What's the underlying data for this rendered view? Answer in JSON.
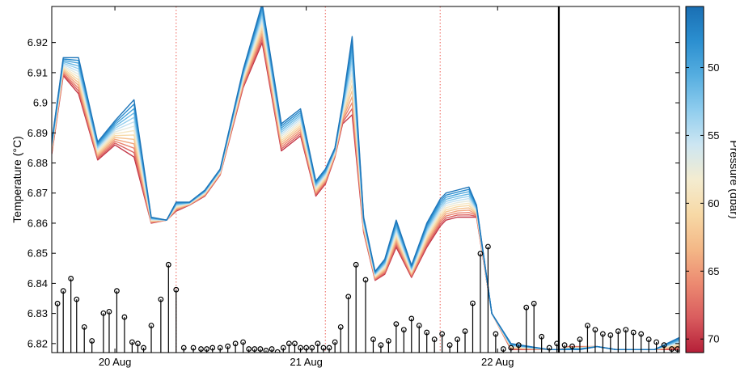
{
  "chart_data": {
    "type": "line",
    "title": "",
    "xlabel": "",
    "ylabel": "Temperature (°C)",
    "ylim": [
      6.817,
      6.932
    ],
    "xlim": [
      0.0,
      3.28
    ],
    "yticks": [
      6.82,
      6.83,
      6.84,
      6.85,
      6.86,
      6.87,
      6.88,
      6.89,
      6.9,
      6.91,
      6.92
    ],
    "ytick_labels": [
      "6.82",
      "6.83",
      "6.84",
      "6.85",
      "6.86",
      "6.87",
      "6.88",
      "6.89",
      "6.9",
      "6.91",
      "6.92"
    ],
    "xticks": [
      0.33,
      1.33,
      2.33
    ],
    "xtick_labels": [
      "20 Aug",
      "21 Aug",
      "22 Aug"
    ],
    "x_unit": "days after 19 Aug 16:00",
    "grid": false,
    "colorbar": {
      "label": "Pressure (dbar)",
      "range": [
        45.5,
        71.0
      ],
      "ticks": [
        50,
        55,
        60,
        65,
        70
      ],
      "tick_labels": [
        "50",
        "55",
        "60",
        "65",
        "70"
      ],
      "colors_top_to_bottom": [
        "#1a6fb3",
        "#2b8fd0",
        "#56aee0",
        "#90cdee",
        "#cde6f2",
        "#f4ecd0",
        "#f7d9a6",
        "#f4b887",
        "#ec8a71",
        "#d95c5e",
        "#b51f38"
      ]
    },
    "reference_lines": {
      "dotted_red_x": [
        0.65,
        1.43,
        2.03
      ],
      "solid_black_x": 2.65
    },
    "series_shallow": {
      "name": "",
      "pressure_dbar": 46,
      "x": [
        0.0,
        0.06,
        0.14,
        0.24,
        0.33,
        0.43,
        0.52,
        0.6,
        0.65,
        0.72,
        0.8,
        0.88,
        1.0,
        1.1,
        1.2,
        1.3,
        1.38,
        1.43,
        1.48,
        1.52,
        1.57,
        1.63,
        1.69,
        1.74,
        1.8,
        1.88,
        1.96,
        2.03,
        2.06,
        2.12,
        2.18,
        2.22,
        2.3,
        2.4,
        2.5,
        2.6,
        2.65,
        2.7,
        2.76,
        2.85,
        2.95,
        3.05,
        3.15,
        3.28
      ],
      "y": [
        6.887,
        6.915,
        6.915,
        6.887,
        6.894,
        6.901,
        6.862,
        6.861,
        6.867,
        6.867,
        6.871,
        6.878,
        6.911,
        6.933,
        6.893,
        6.898,
        6.874,
        6.878,
        6.885,
        6.9,
        6.922,
        6.862,
        6.844,
        6.848,
        6.861,
        6.846,
        6.86,
        6.868,
        6.87,
        6.871,
        6.872,
        6.866,
        6.83,
        6.82,
        6.819,
        6.818,
        6.818,
        6.818,
        6.818,
        6.819,
        6.818,
        6.818,
        6.818,
        6.822
      ]
    },
    "series_deep": {
      "name": "",
      "pressure_dbar": 70,
      "x": [
        0.0,
        0.06,
        0.14,
        0.24,
        0.33,
        0.43,
        0.52,
        0.6,
        0.65,
        0.72,
        0.8,
        0.88,
        1.0,
        1.1,
        1.2,
        1.3,
        1.38,
        1.43,
        1.48,
        1.52,
        1.57,
        1.63,
        1.69,
        1.74,
        1.8,
        1.88,
        1.96,
        2.03,
        2.06,
        2.12,
        2.18,
        2.22,
        2.3,
        2.4,
        2.5,
        2.6,
        2.65,
        2.7,
        2.76,
        2.85,
        2.95,
        3.05,
        3.15,
        3.28
      ],
      "y": [
        6.883,
        6.909,
        6.903,
        6.881,
        6.886,
        6.882,
        6.86,
        6.861,
        6.864,
        6.866,
        6.869,
        6.876,
        6.905,
        6.92,
        6.884,
        6.889,
        6.869,
        6.873,
        6.882,
        6.893,
        6.896,
        6.857,
        6.841,
        6.843,
        6.852,
        6.842,
        6.852,
        6.859,
        6.861,
        6.862,
        6.862,
        6.862,
        6.83,
        6.818,
        6.818,
        6.818,
        6.818,
        6.819,
        6.819,
        6.819,
        6.818,
        6.818,
        6.818,
        6.818
      ]
    },
    "stems": {
      "name": "",
      "x": [
        0.03,
        0.06,
        0.1,
        0.13,
        0.17,
        0.21,
        0.27,
        0.3,
        0.34,
        0.38,
        0.42,
        0.45,
        0.48,
        0.52,
        0.57,
        0.61,
        0.65,
        0.69,
        0.74,
        0.78,
        0.81,
        0.84,
        0.88,
        0.92,
        0.96,
        1.0,
        1.03,
        1.06,
        1.09,
        1.12,
        1.15,
        1.18,
        1.21,
        1.24,
        1.27,
        1.3,
        1.33,
        1.36,
        1.39,
        1.42,
        1.45,
        1.48,
        1.51,
        1.55,
        1.59,
        1.64,
        1.68,
        1.72,
        1.76,
        1.8,
        1.84,
        1.88,
        1.92,
        1.96,
        2.0,
        2.04,
        2.08,
        2.12,
        2.16,
        2.2,
        2.24,
        2.28,
        2.32,
        2.36,
        2.4,
        2.44,
        2.48,
        2.52,
        2.56,
        2.6,
        2.64,
        2.68,
        2.72,
        2.76,
        2.8,
        2.84,
        2.88,
        2.92,
        2.96,
        3.0,
        3.04,
        3.08,
        3.12,
        3.16,
        3.2,
        3.24,
        3.27
      ],
      "y": [
        6.8333,
        6.8375,
        6.8416,
        6.8347,
        6.8255,
        6.8209,
        6.8301,
        6.8306,
        6.8375,
        6.8288,
        6.8205,
        6.82,
        6.8186,
        6.826,
        6.8347,
        6.8462,
        6.8379,
        6.8186,
        6.8186,
        6.8182,
        6.8182,
        6.8186,
        6.8186,
        6.8191,
        6.82,
        6.8205,
        6.8182,
        6.8182,
        6.8182,
        6.8177,
        6.8182,
        6.8172,
        6.8186,
        6.82,
        6.82,
        6.8186,
        6.8186,
        6.8186,
        6.82,
        6.8186,
        6.8186,
        6.8205,
        6.8255,
        6.8356,
        6.8462,
        6.8412,
        6.8214,
        6.8195,
        6.8209,
        6.8265,
        6.8246,
        6.8283,
        6.826,
        6.8237,
        6.8214,
        6.8232,
        6.8195,
        6.8214,
        6.8241,
        6.8334,
        6.8499,
        6.8522,
        6.8232,
        6.8182,
        6.8186,
        6.8195,
        6.832,
        6.8333,
        6.8223,
        6.8186,
        6.82,
        6.8195,
        6.8191,
        6.8214,
        6.826,
        6.8246,
        6.8232,
        6.8228,
        6.8241,
        6.8246,
        6.8237,
        6.8232,
        6.8214,
        6.8205,
        6.8195,
        6.8182,
        6.8182
      ]
    }
  }
}
